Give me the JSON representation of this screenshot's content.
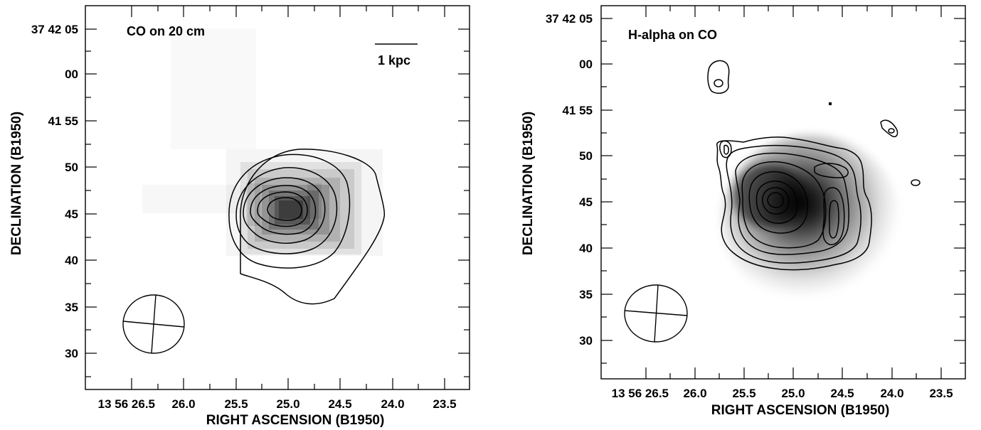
{
  "figure": {
    "panels": [
      {
        "title": "CO on 20 cm",
        "scale_bar_label": "1 kpc",
        "xlabel": "RIGHT ASCENSION (B1950)",
        "ylabel": "DECLINATION (B1950)",
        "x_ticks": [
          "13 56 26.5",
          "26.0",
          "25.5",
          "25.0",
          "24.5",
          "24.0",
          "23.5"
        ],
        "y_ticks": [
          "37 42 05",
          "00",
          "41 55",
          "50",
          "45",
          "40",
          "35",
          "30"
        ]
      },
      {
        "title": "H-alpha on CO",
        "xlabel": "RIGHT ASCENSION (B1950)",
        "ylabel": "DECLINATION (B1950)",
        "x_ticks": [
          "13 56 26.5",
          "26.0",
          "25.5",
          "25.0",
          "24.5",
          "24.0",
          "23.5"
        ],
        "y_ticks": [
          "37 42 05",
          "00",
          "41 55",
          "50",
          "45",
          "40",
          "35",
          "30"
        ]
      }
    ]
  }
}
